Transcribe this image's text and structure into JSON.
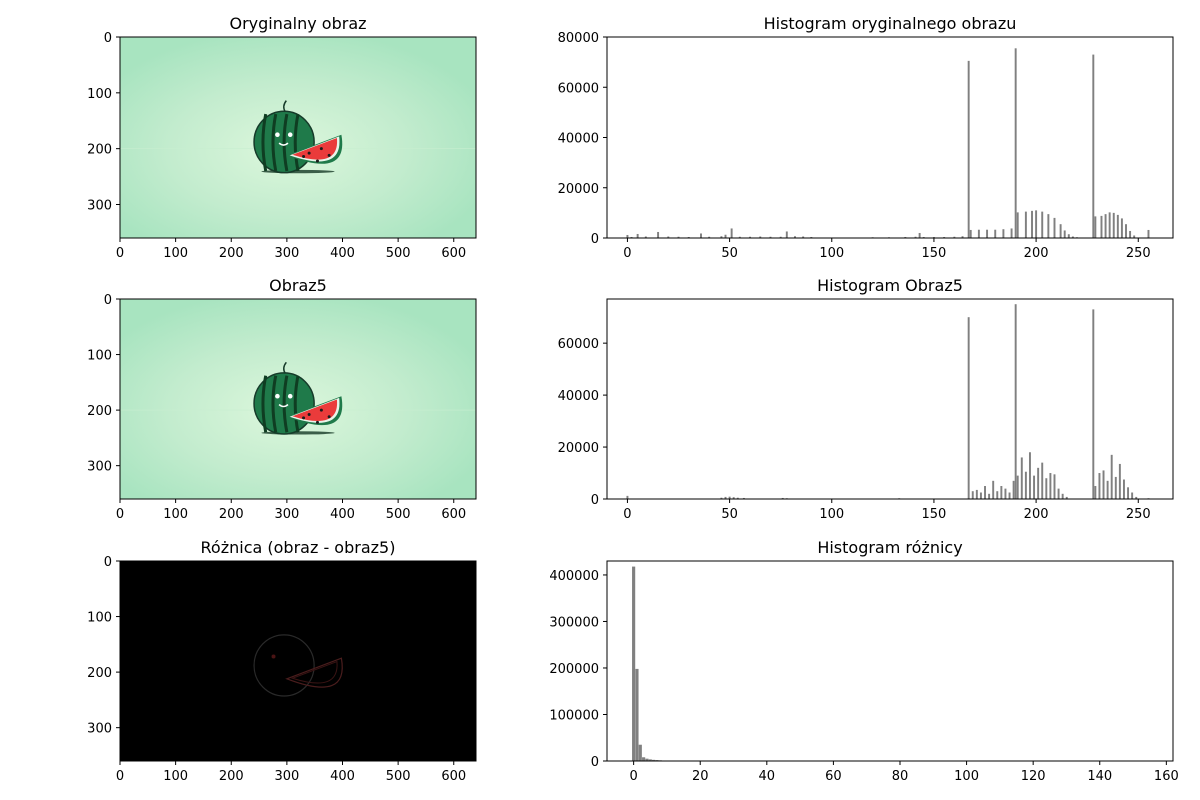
{
  "chart_data": [
    {
      "type": "image",
      "title": "Oryginalny obraz",
      "image": "original",
      "xlim": [
        0,
        640
      ],
      "ylim": [
        360,
        0
      ],
      "xticks": [
        "0",
        "100",
        "200",
        "300",
        "400",
        "500",
        "600"
      ],
      "yticks": [
        "0",
        "100",
        "200",
        "300"
      ]
    },
    {
      "type": "bar",
      "title": "Histogram oryginalnego obrazu",
      "xlim": [
        -10,
        267
      ],
      "ylim": [
        0,
        80000
      ],
      "xticks": [
        "0",
        "50",
        "100",
        "150",
        "200",
        "250"
      ],
      "yticks": [
        "0",
        "20000",
        "40000",
        "60000",
        "80000"
      ],
      "bar_color": "#808080",
      "points": [
        [
          0,
          1200
        ],
        [
          2,
          400
        ],
        [
          5,
          1600
        ],
        [
          9,
          600
        ],
        [
          15,
          2400
        ],
        [
          20,
          600
        ],
        [
          25,
          500
        ],
        [
          30,
          400
        ],
        [
          36,
          1800
        ],
        [
          40,
          500
        ],
        [
          46,
          700
        ],
        [
          48,
          1300
        ],
        [
          51,
          3800
        ],
        [
          55,
          500
        ],
        [
          60,
          500
        ],
        [
          65,
          600
        ],
        [
          70,
          500
        ],
        [
          75,
          500
        ],
        [
          78,
          2600
        ],
        [
          82,
          700
        ],
        [
          86,
          600
        ],
        [
          90,
          400
        ],
        [
          120,
          300
        ],
        [
          128,
          300
        ],
        [
          136,
          400
        ],
        [
          141,
          500
        ],
        [
          143,
          2000
        ],
        [
          145,
          400
        ],
        [
          150,
          400
        ],
        [
          155,
          400
        ],
        [
          160,
          500
        ],
        [
          164,
          700
        ],
        [
          167,
          70500
        ],
        [
          168,
          3200
        ],
        [
          172,
          3300
        ],
        [
          176,
          3300
        ],
        [
          180,
          3300
        ],
        [
          184,
          3500
        ],
        [
          188,
          3800
        ],
        [
          190,
          75500
        ],
        [
          191,
          10200
        ],
        [
          195,
          10500
        ],
        [
          198,
          10800
        ],
        [
          200,
          11000
        ],
        [
          203,
          10500
        ],
        [
          206,
          9500
        ],
        [
          209,
          8000
        ],
        [
          212,
          5500
        ],
        [
          214,
          3000
        ],
        [
          216,
          1500
        ],
        [
          218,
          600
        ],
        [
          220,
          300
        ],
        [
          228,
          73000
        ],
        [
          229,
          8600
        ],
        [
          232,
          8800
        ],
        [
          234,
          9500
        ],
        [
          236,
          10200
        ],
        [
          238,
          10000
        ],
        [
          240,
          9200
        ],
        [
          242,
          7800
        ],
        [
          244,
          5500
        ],
        [
          246,
          2800
        ],
        [
          248,
          1000
        ],
        [
          255,
          3200
        ]
      ]
    },
    {
      "type": "image",
      "title": "Obraz5",
      "image": "obraz5",
      "xlim": [
        0,
        640
      ],
      "ylim": [
        360,
        0
      ],
      "xticks": [
        "0",
        "100",
        "200",
        "300",
        "400",
        "500",
        "600"
      ],
      "yticks": [
        "0",
        "100",
        "200",
        "300"
      ]
    },
    {
      "type": "bar",
      "title": "Histogram Obraz5",
      "xlim": [
        -10,
        267
      ],
      "ylim": [
        0,
        77000
      ],
      "xticks": [
        "0",
        "50",
        "100",
        "150",
        "200",
        "250"
      ],
      "yticks": [
        "0",
        "20000",
        "40000",
        "60000"
      ],
      "bar_color": "#808080",
      "points": [
        [
          0,
          1200
        ],
        [
          46,
          500
        ],
        [
          48,
          800
        ],
        [
          50,
          900
        ],
        [
          52,
          700
        ],
        [
          54,
          500
        ],
        [
          57,
          400
        ],
        [
          76,
          400
        ],
        [
          78,
          300
        ],
        [
          100,
          200
        ],
        [
          133,
          300
        ],
        [
          167,
          70000
        ],
        [
          169,
          3000
        ],
        [
          171,
          3500
        ],
        [
          173,
          2500
        ],
        [
          175,
          5000
        ],
        [
          177,
          2000
        ],
        [
          179,
          7000
        ],
        [
          181,
          3000
        ],
        [
          183,
          5000
        ],
        [
          185,
          4000
        ],
        [
          187,
          2500
        ],
        [
          189,
          7000
        ],
        [
          190,
          75000
        ],
        [
          191,
          9000
        ],
        [
          193,
          16000
        ],
        [
          195,
          10500
        ],
        [
          197,
          18000
        ],
        [
          199,
          9000
        ],
        [
          201,
          12000
        ],
        [
          203,
          14000
        ],
        [
          205,
          8000
        ],
        [
          207,
          10000
        ],
        [
          209,
          9500
        ],
        [
          211,
          4000
        ],
        [
          213,
          2000
        ],
        [
          215,
          800
        ],
        [
          228,
          73000
        ],
        [
          229,
          5000
        ],
        [
          231,
          10000
        ],
        [
          233,
          11000
        ],
        [
          235,
          7000
        ],
        [
          237,
          17000
        ],
        [
          239,
          8500
        ],
        [
          241,
          13500
        ],
        [
          243,
          7500
        ],
        [
          245,
          4500
        ],
        [
          247,
          2500
        ],
        [
          249,
          800
        ],
        [
          255,
          300
        ]
      ]
    },
    {
      "type": "image",
      "title": "Różnica (obraz - obraz5)",
      "image": "difference",
      "xlim": [
        0,
        640
      ],
      "ylim": [
        360,
        0
      ],
      "xticks": [
        "0",
        "100",
        "200",
        "300",
        "400",
        "500",
        "600"
      ],
      "yticks": [
        "0",
        "100",
        "200",
        "300"
      ]
    },
    {
      "type": "bar",
      "title": "Histogram różnicy",
      "xlim": [
        -8,
        162
      ],
      "ylim": [
        0,
        430000
      ],
      "xticks": [
        "0",
        "20",
        "40",
        "60",
        "80",
        "100",
        "120",
        "140",
        "160"
      ],
      "yticks": [
        "0",
        "100000",
        "200000",
        "300000",
        "400000"
      ],
      "bar_color": "#808080",
      "points": [
        [
          0,
          418000
        ],
        [
          1,
          198000
        ],
        [
          2,
          35000
        ],
        [
          3,
          8000
        ],
        [
          4,
          5000
        ],
        [
          5,
          3500
        ],
        [
          6,
          2500
        ],
        [
          7,
          2000
        ],
        [
          8,
          1500
        ],
        [
          9,
          1000
        ],
        [
          10,
          600
        ],
        [
          12,
          300
        ],
        [
          15,
          200
        ]
      ]
    }
  ]
}
